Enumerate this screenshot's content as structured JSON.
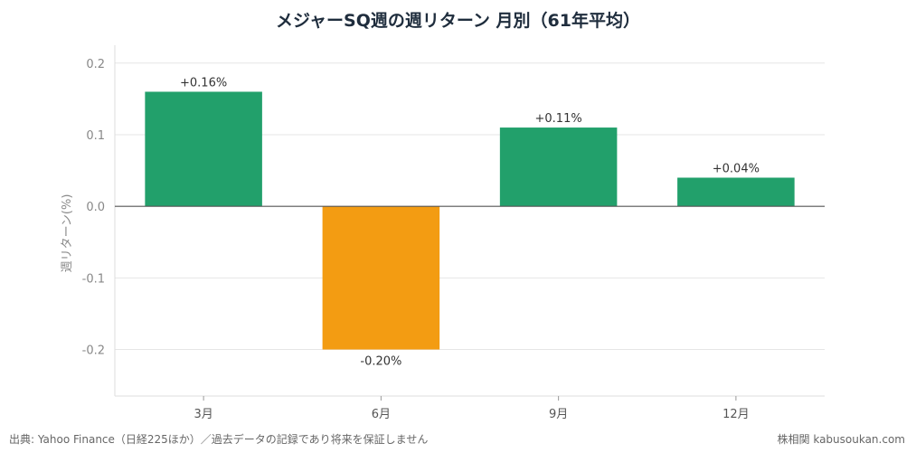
{
  "title": "メジャーSQ週の週リターン 月別（61年平均）",
  "source": "出典: Yahoo Finance（日経225ほか）／過去データの記録であり将来を保証しません",
  "brand": "株相関 kabusoukan.com",
  "colors": {
    "positive": "#22a06b",
    "negative": "#f39c12",
    "grid": "#e6e6e6",
    "zero": "#555555"
  },
  "chart_data": {
    "type": "bar",
    "categories": [
      "3月",
      "6月",
      "9月",
      "12月"
    ],
    "values": [
      0.16,
      -0.2,
      0.11,
      0.04
    ],
    "labels": [
      "+0.16%",
      "-0.20%",
      "+0.11%",
      "+0.04%"
    ],
    "ylabel": "週リターン(%)",
    "ylim": [
      -0.265,
      0.225
    ],
    "yticks": [
      -0.2,
      -0.1,
      0.0,
      0.1,
      0.2
    ],
    "ytick_labels": [
      "-0.2",
      "-0.1",
      "0.0",
      "0.1",
      "0.2"
    ],
    "grid": true
  }
}
